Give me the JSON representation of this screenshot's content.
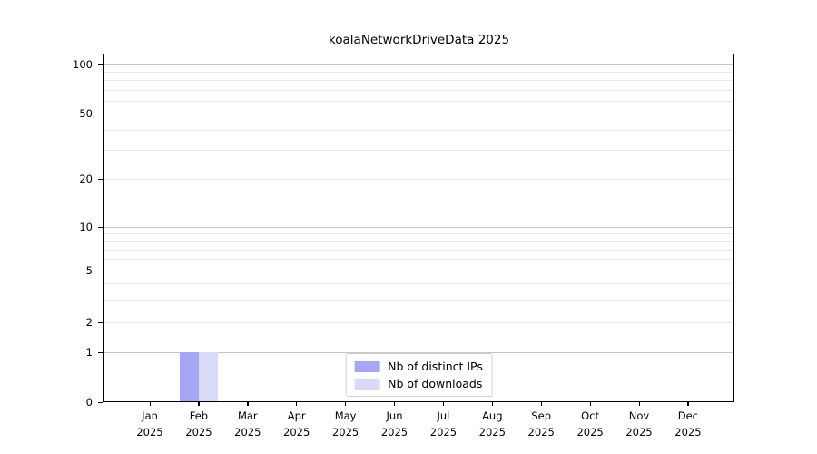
{
  "chart_data": {
    "type": "bar",
    "title": "koalaNetworkDriveData 2025",
    "categories": [
      "Jan 2025",
      "Feb 2025",
      "Mar 2025",
      "Apr 2025",
      "May 2025",
      "Jun 2025",
      "Jul 2025",
      "Aug 2025",
      "Sep 2025",
      "Oct 2025",
      "Nov 2025",
      "Dec 2025"
    ],
    "series": [
      {
        "name": "Nb of distinct IPs",
        "color": "#a6a6f6",
        "values": [
          0,
          1,
          0,
          0,
          0,
          0,
          0,
          0,
          0,
          0,
          0,
          0
        ]
      },
      {
        "name": "Nb of downloads",
        "color": "#d9d9f8",
        "values": [
          0,
          1,
          0,
          0,
          0,
          0,
          0,
          0,
          0,
          0,
          0,
          0
        ]
      }
    ],
    "yscale": "symlog",
    "yticks": [
      0,
      1,
      2,
      5,
      10,
      20,
      50,
      100
    ],
    "ylim": [
      0,
      130
    ],
    "xlabel": "",
    "ylabel": "",
    "grid": true,
    "legend_position": "lower center"
  },
  "colors": {
    "grid_decade": "#c6c6c6",
    "grid_minor": "#e9e9e9",
    "frame": "#000000",
    "background": "#ffffff"
  }
}
